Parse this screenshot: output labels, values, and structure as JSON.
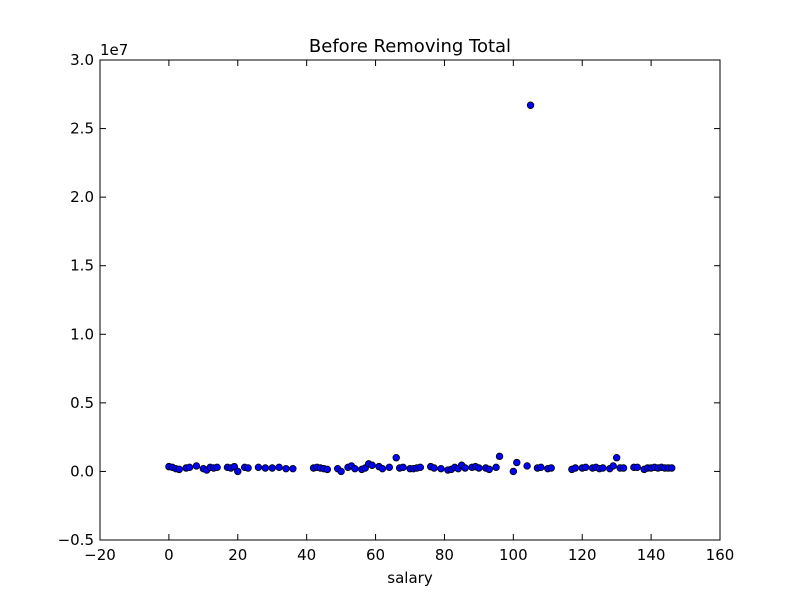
{
  "chart_data": {
    "type": "scatter",
    "title": "Before Removing Total",
    "xlabel": "salary",
    "ylabel": "",
    "y_offset_label": "1e7",
    "xlim": [
      -20,
      160
    ],
    "ylim": [
      -0.5,
      3.0
    ],
    "x_ticks": [
      -20,
      0,
      20,
      40,
      60,
      80,
      100,
      120,
      140,
      160
    ],
    "x_tick_labels": [
      "−20",
      "0",
      "20",
      "40",
      "60",
      "80",
      "100",
      "120",
      "140",
      "160"
    ],
    "y_ticks": [
      -0.5,
      0.0,
      0.5,
      1.0,
      1.5,
      2.0,
      2.5,
      3.0
    ],
    "y_tick_labels": [
      "−0.5",
      "0.0",
      "0.5",
      "1.0",
      "1.5",
      "2.0",
      "2.5",
      "3.0"
    ],
    "grid": false,
    "marker_color": "#0000ff",
    "series": [
      {
        "x": [
          0,
          1,
          2,
          3,
          5,
          6,
          8,
          10,
          11,
          12,
          13,
          14,
          17,
          18,
          19,
          20,
          22,
          23,
          26,
          28,
          30,
          32,
          34,
          36,
          42,
          43,
          44,
          45,
          46,
          49,
          50,
          52,
          53,
          54,
          56,
          57,
          58,
          59,
          61,
          62,
          64,
          66,
          67,
          68,
          70,
          71,
          72,
          73,
          76,
          77,
          79,
          81,
          82,
          83,
          84,
          85,
          86,
          88,
          89,
          90,
          92,
          93,
          95,
          96,
          100,
          101,
          104,
          105,
          107,
          108,
          110,
          111,
          117,
          118,
          120,
          121,
          123,
          124,
          125,
          126,
          128,
          129,
          130,
          131,
          132,
          135,
          136,
          138,
          139,
          140,
          141,
          142,
          143,
          144,
          145,
          146
        ],
        "y": [
          0.035,
          0.03,
          0.02,
          0.015,
          0.025,
          0.03,
          0.04,
          0.02,
          0.01,
          0.03,
          0.025,
          0.03,
          0.03,
          0.025,
          0.035,
          0.0,
          0.03,
          0.025,
          0.03,
          0.025,
          0.025,
          0.03,
          0.02,
          0.02,
          0.025,
          0.03,
          0.025,
          0.02,
          0.015,
          0.02,
          0.0,
          0.03,
          0.04,
          0.02,
          0.015,
          0.025,
          0.055,
          0.045,
          0.035,
          0.02,
          0.03,
          0.1,
          0.025,
          0.03,
          0.02,
          0.02,
          0.025,
          0.03,
          0.035,
          0.025,
          0.02,
          0.01,
          0.015,
          0.03,
          0.02,
          0.045,
          0.025,
          0.03,
          0.035,
          0.025,
          0.025,
          0.015,
          0.03,
          0.11,
          0.0,
          0.065,
          0.04,
          2.67,
          0.025,
          0.03,
          0.02,
          0.025,
          0.015,
          0.025,
          0.025,
          0.03,
          0.025,
          0.03,
          0.02,
          0.025,
          0.02,
          0.04,
          0.1,
          0.025,
          0.025,
          0.03,
          0.03,
          0.015,
          0.025,
          0.025,
          0.03,
          0.025,
          0.03,
          0.025,
          0.025,
          0.025
        ]
      }
    ]
  }
}
